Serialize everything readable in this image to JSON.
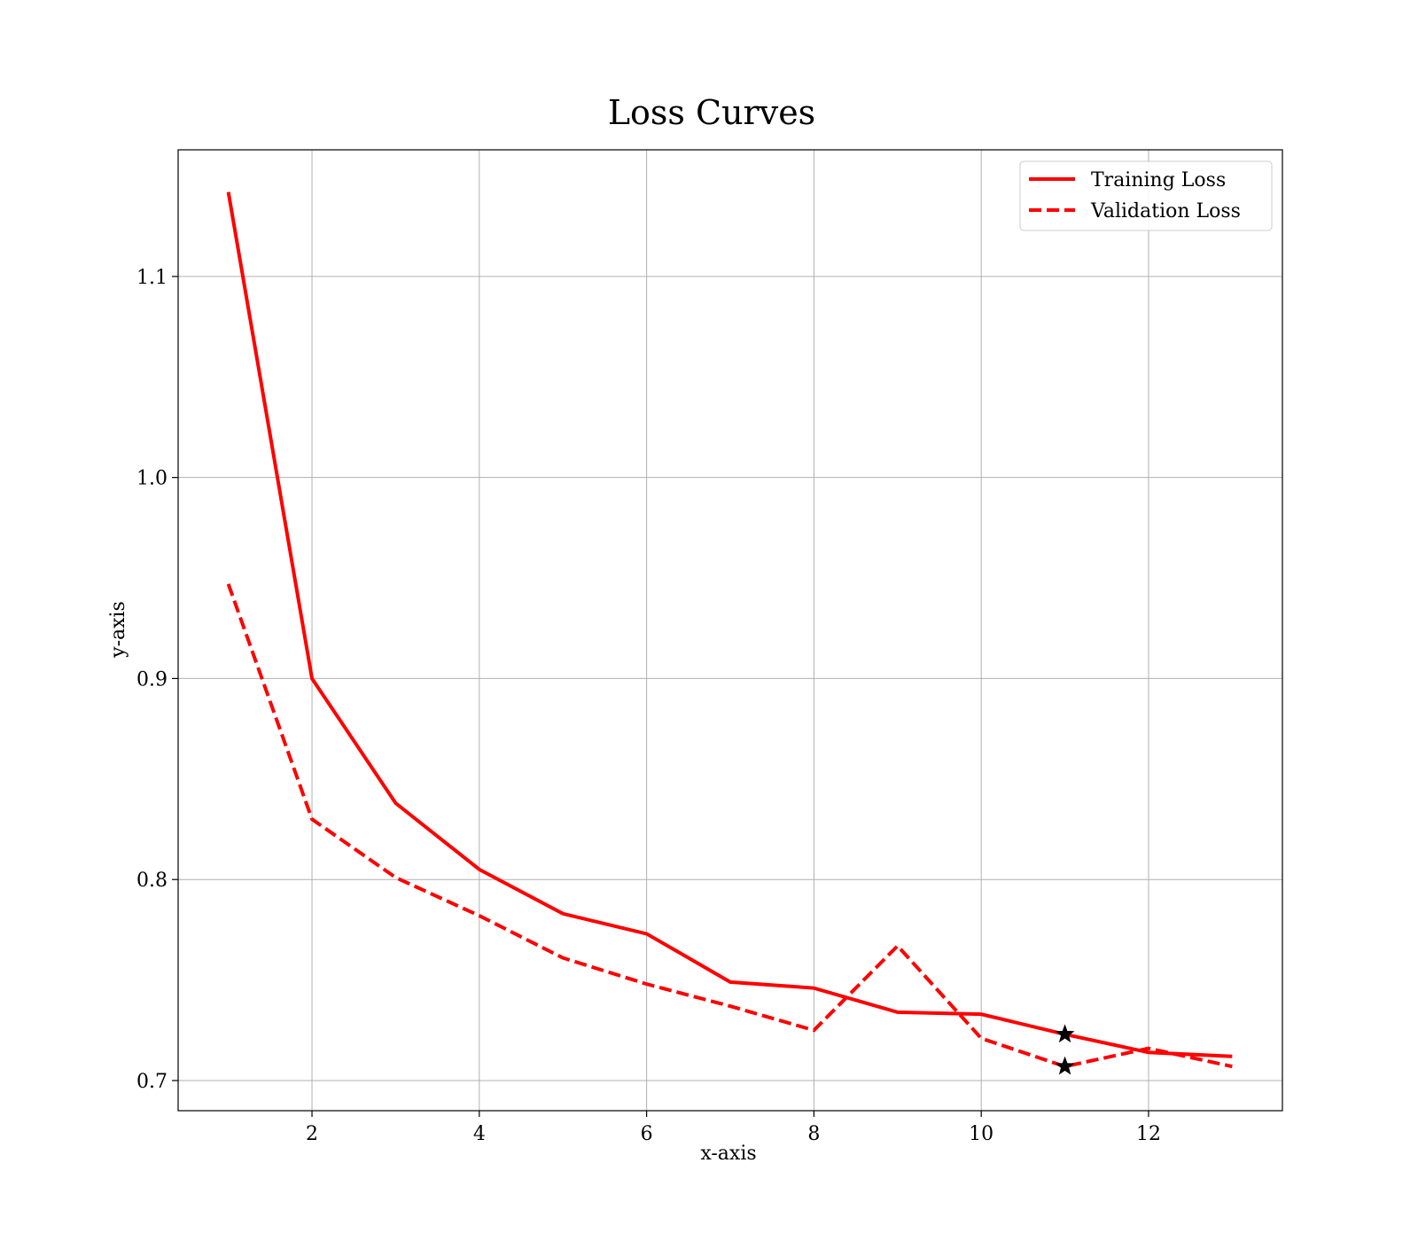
{
  "chart_data": {
    "type": "line",
    "title": "Loss Curves",
    "xlabel": "x-axis",
    "ylabel": "y-axis",
    "xlim": [
      0.4,
      13.6
    ],
    "ylim": [
      0.685,
      1.163
    ],
    "xticks": [
      2,
      4,
      6,
      8,
      10,
      12
    ],
    "yticks": [
      0.7,
      0.8,
      0.9,
      1.0,
      1.1
    ],
    "xtick_labels": [
      "2",
      "4",
      "6",
      "8",
      "10",
      "12"
    ],
    "ytick_labels": [
      "0.7",
      "0.8",
      "0.9",
      "1.0",
      "1.1"
    ],
    "grid": true,
    "legend_position": "top-right",
    "x": [
      1,
      2,
      3,
      4,
      5,
      6,
      7,
      8,
      9,
      10,
      11,
      12,
      13
    ],
    "series": [
      {
        "name": "Training Loss",
        "style": "solid",
        "color": "#ff0000",
        "values": [
          1.142,
          0.9,
          0.838,
          0.805,
          0.783,
          0.773,
          0.749,
          0.746,
          0.734,
          0.733,
          0.723,
          0.714,
          0.712
        ]
      },
      {
        "name": "Validation Loss",
        "style": "dashed",
        "color": "#ff0000",
        "values": [
          0.947,
          0.83,
          0.801,
          0.782,
          0.761,
          0.748,
          0.737,
          0.725,
          0.767,
          0.721,
          0.707,
          0.716,
          0.707
        ]
      }
    ],
    "markers": [
      {
        "series": "Training Loss",
        "x": 11,
        "y": 0.723,
        "symbol": "star-icon",
        "color": "#000000"
      },
      {
        "series": "Validation Loss",
        "x": 11,
        "y": 0.707,
        "symbol": "star-icon",
        "color": "#000000"
      }
    ]
  }
}
